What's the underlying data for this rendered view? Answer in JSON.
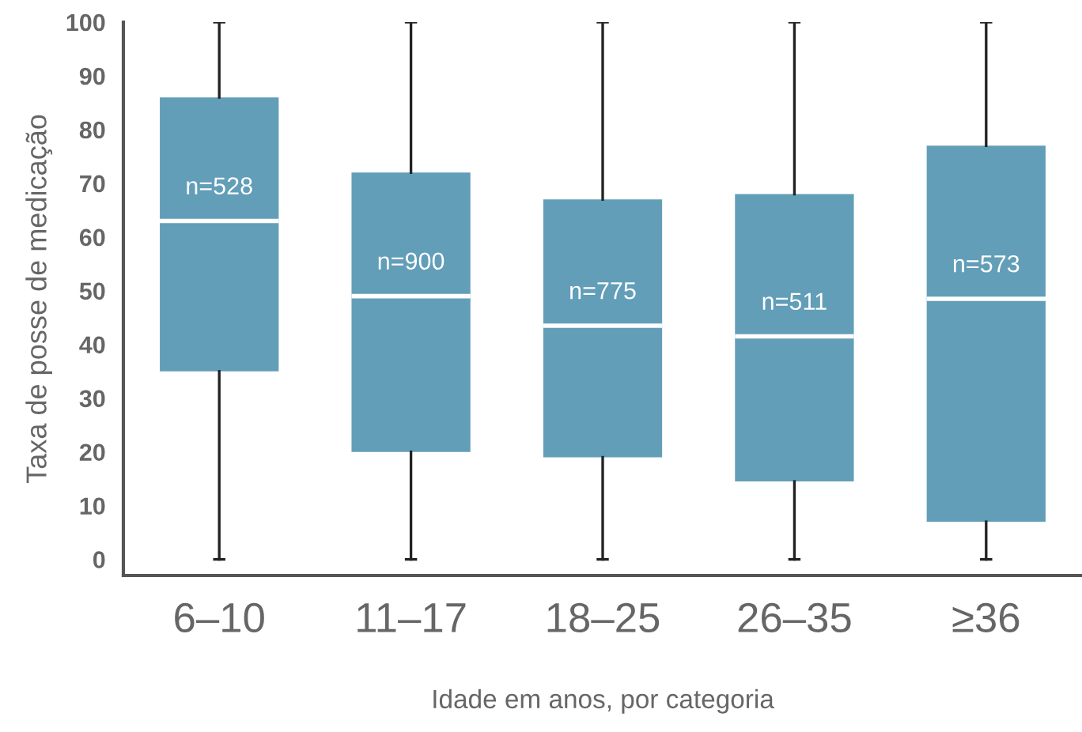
{
  "chart_data": {
    "type": "box",
    "xlabel": "Idade em anos, por categoria",
    "ylabel": "Taxa de posse de medicação",
    "categories": [
      "6–10",
      "11–17",
      "18–25",
      "26–35",
      "≥36"
    ],
    "color": "#629eb8",
    "boxes": [
      {
        "low": 0,
        "q1": 35,
        "median": 63,
        "q3": 86,
        "high": 100
      },
      {
        "low": 0,
        "q1": 20,
        "median": 49,
        "q3": 72,
        "high": 100
      },
      {
        "low": 0,
        "q1": 19,
        "median": 43.5,
        "q3": 67,
        "high": 100
      },
      {
        "low": 0,
        "q1": 14.5,
        "median": 41.5,
        "q3": 68,
        "high": 100
      },
      {
        "low": 0,
        "q1": 7,
        "median": 48.5,
        "q3": 77,
        "high": 100
      }
    ],
    "annotations": [
      "n=528",
      "n=900",
      "n=775",
      "n=511",
      "n=573"
    ],
    "ylim": [
      -3,
      100
    ],
    "yticks": [
      0,
      10,
      20,
      30,
      40,
      50,
      60,
      70,
      80,
      90,
      100
    ],
    "grid": false
  }
}
